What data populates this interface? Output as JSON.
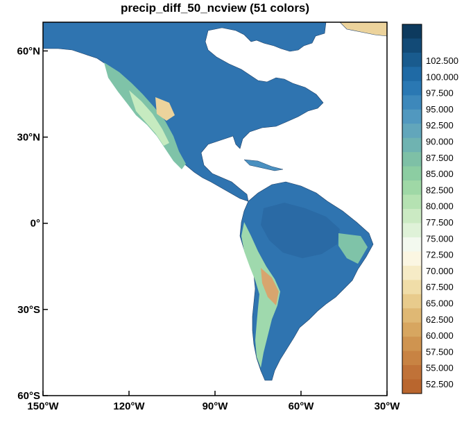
{
  "title": "precip_diff_50_ncview (51 colors)",
  "map": {
    "lat_labels": [
      "60°N",
      "30°N",
      "0°",
      "30°S",
      "60°S"
    ],
    "lat_values": [
      60,
      30,
      0,
      -30,
      -60
    ],
    "lon_labels": [
      "150°W",
      "120°W",
      "90°W",
      "60°W",
      "30°W"
    ],
    "lon_values": [
      -150,
      -120,
      -90,
      -60,
      -30
    ],
    "lat_range": [
      -60,
      70
    ],
    "lon_range": [
      -150,
      -30
    ],
    "ocean_color": "#ffffff",
    "land_palette": [
      "#1e5f9a",
      "#2f7ab5",
      "#4a90c0",
      "#63a6b8",
      "#7fc3a8",
      "#9fd9ad",
      "#c6ebc0",
      "#f7f4d8",
      "#ecd39c",
      "#d8a56e"
    ]
  },
  "colorbar": {
    "labels": [
      "102.500",
      "100.000",
      "97.500",
      "95.000",
      "92.500",
      "90.000",
      "87.500",
      "85.000",
      "82.500",
      "80.000",
      "77.500",
      "75.000",
      "72.500",
      "70.000",
      "67.500",
      "65.000",
      "62.500",
      "60.000",
      "57.500",
      "55.000",
      "52.500"
    ],
    "colors": [
      "#0d3a5e",
      "#124a76",
      "#195b8e",
      "#1f6aa5",
      "#2a78b3",
      "#3d88bb",
      "#5198bf",
      "#62a6bb",
      "#6fb3b1",
      "#7ec0a6",
      "#8ccda2",
      "#9fd8a6",
      "#b5e2b2",
      "#cbeac3",
      "#dff2d8",
      "#f3f9ef",
      "#fbf6e2",
      "#f6ebc6",
      "#f0dda8",
      "#e8cb8c",
      "#dfb874",
      "#d7a660",
      "#cf9450",
      "#c88343",
      "#c07238",
      "#b9662e"
    ]
  }
}
